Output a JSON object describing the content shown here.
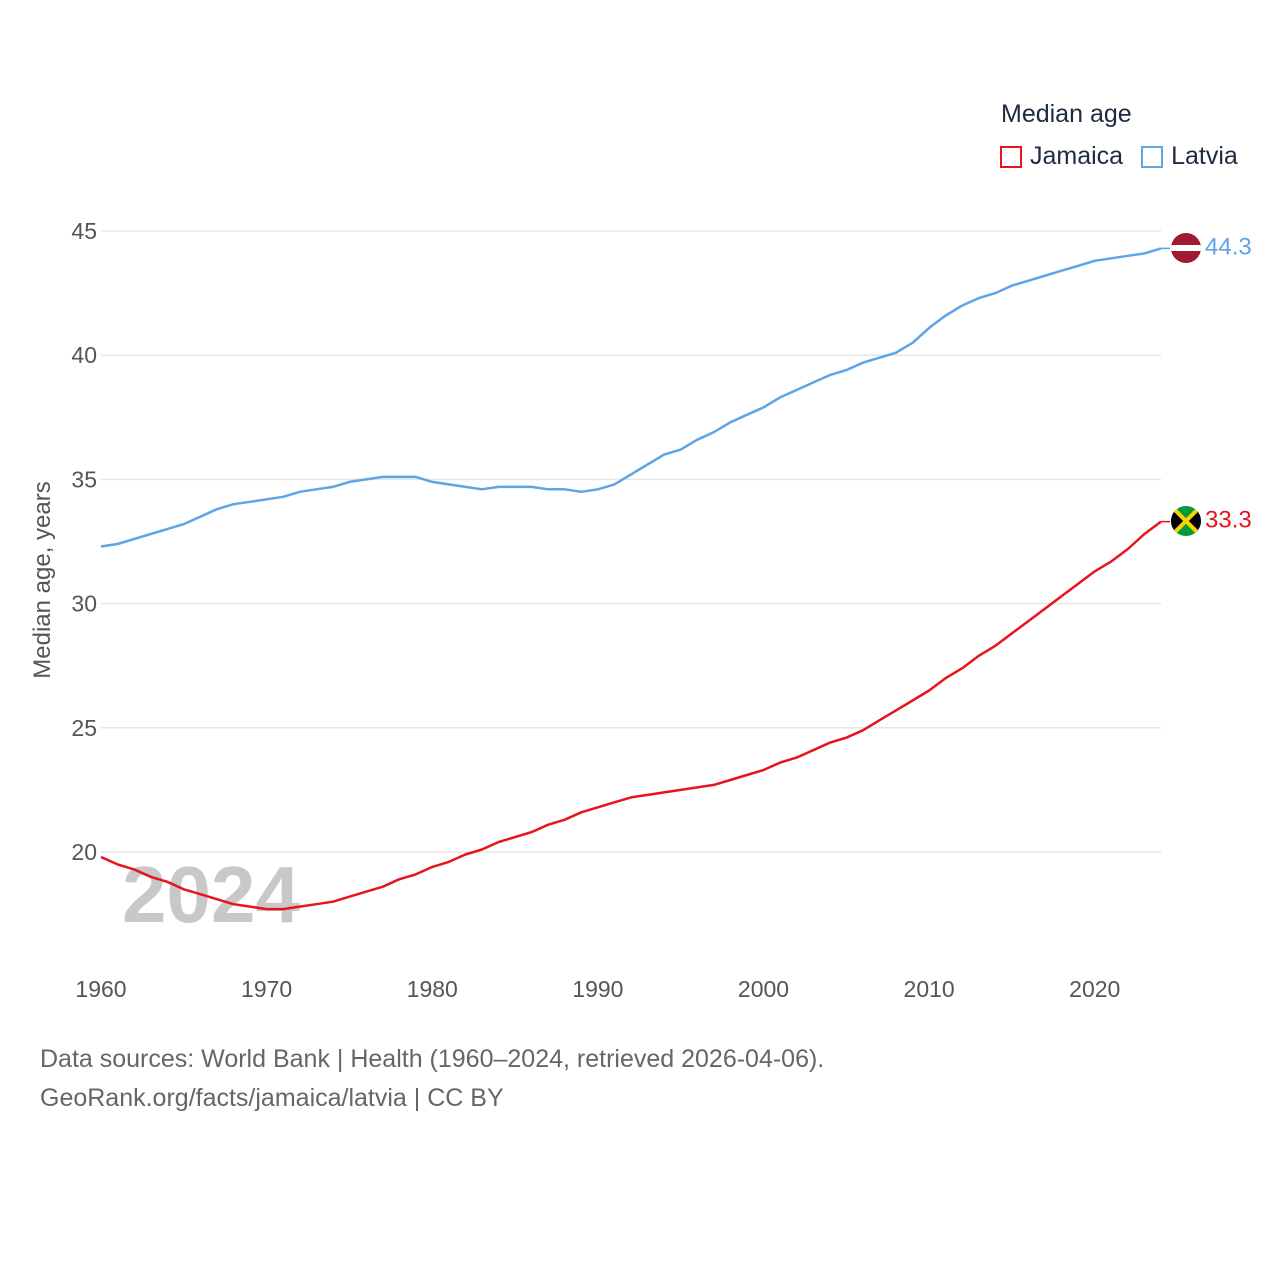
{
  "legend": {
    "title": "Median age",
    "items": [
      {
        "label": "Jamaica",
        "color": "#e8141c"
      },
      {
        "label": "Latvia",
        "color": "#5ea4e6"
      }
    ]
  },
  "footer": {
    "source": "Data sources: World Bank | Health (1960–2024, retrieved 2026-04-06).",
    "credit": "GeoRank.org/facts/jamaica/latvia | CC BY"
  },
  "chart_data": {
    "type": "line",
    "title": "Median age",
    "xlabel": "",
    "ylabel": "Median age, years",
    "year_label": "2024",
    "xlim": [
      1960,
      2024
    ],
    "ylim": [
      16,
      46
    ],
    "x_ticks": [
      1960,
      1970,
      1980,
      1990,
      2000,
      2010,
      2020
    ],
    "y_ticks": [
      20,
      25,
      30,
      35,
      40,
      45
    ],
    "grid": true,
    "legend_position": "top-right",
    "x": [
      1960,
      1961,
      1962,
      1963,
      1964,
      1965,
      1966,
      1967,
      1968,
      1969,
      1970,
      1971,
      1972,
      1973,
      1974,
      1975,
      1976,
      1977,
      1978,
      1979,
      1980,
      1981,
      1982,
      1983,
      1984,
      1985,
      1986,
      1987,
      1988,
      1989,
      1990,
      1991,
      1992,
      1993,
      1994,
      1995,
      1996,
      1997,
      1998,
      1999,
      2000,
      2001,
      2002,
      2003,
      2004,
      2005,
      2006,
      2007,
      2008,
      2009,
      2010,
      2011,
      2012,
      2013,
      2014,
      2015,
      2016,
      2017,
      2018,
      2019,
      2020,
      2021,
      2022,
      2023,
      2024
    ],
    "series": [
      {
        "name": "Jamaica",
        "color": "#e8141c",
        "end_label": "33.3",
        "values": [
          19.8,
          19.5,
          19.3,
          19.0,
          18.8,
          18.5,
          18.3,
          18.1,
          17.9,
          17.8,
          17.7,
          17.7,
          17.8,
          17.9,
          18.0,
          18.2,
          18.4,
          18.6,
          18.9,
          19.1,
          19.4,
          19.6,
          19.9,
          20.1,
          20.4,
          20.6,
          20.8,
          21.1,
          21.3,
          21.6,
          21.8,
          22.0,
          22.2,
          22.3,
          22.4,
          22.5,
          22.6,
          22.7,
          22.9,
          23.1,
          23.3,
          23.6,
          23.8,
          24.1,
          24.4,
          24.6,
          24.9,
          25.3,
          25.7,
          26.1,
          26.5,
          27.0,
          27.4,
          27.9,
          28.3,
          28.8,
          29.3,
          29.8,
          30.3,
          30.8,
          31.3,
          31.7,
          32.2,
          32.8,
          33.3
        ]
      },
      {
        "name": "Latvia",
        "color": "#5ea4e6",
        "end_label": "44.3",
        "values": [
          32.3,
          32.4,
          32.6,
          32.8,
          33.0,
          33.2,
          33.5,
          33.8,
          34.0,
          34.1,
          34.2,
          34.3,
          34.5,
          34.6,
          34.7,
          34.9,
          35.0,
          35.1,
          35.1,
          35.1,
          34.9,
          34.8,
          34.7,
          34.6,
          34.7,
          34.7,
          34.7,
          34.6,
          34.6,
          34.5,
          34.6,
          34.8,
          35.2,
          35.6,
          36.0,
          36.2,
          36.6,
          36.9,
          37.3,
          37.6,
          37.9,
          38.3,
          38.6,
          38.9,
          39.2,
          39.4,
          39.7,
          39.9,
          40.1,
          40.5,
          41.1,
          41.6,
          42.0,
          42.3,
          42.5,
          42.8,
          43.0,
          43.2,
          43.4,
          43.6,
          43.8,
          43.9,
          44.0,
          44.1,
          44.3
        ]
      }
    ]
  }
}
